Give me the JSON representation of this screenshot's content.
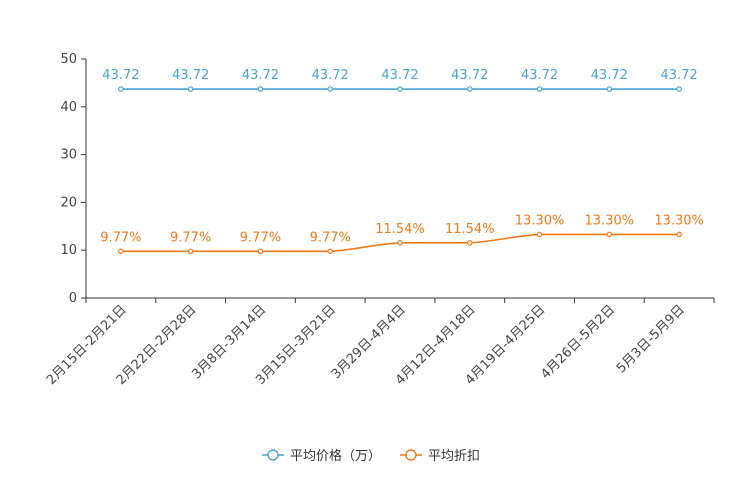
{
  "chart_data": {
    "type": "line",
    "title": "",
    "xlabel": "",
    "ylabel": "",
    "ylim": [
      0,
      50
    ],
    "yticks": [
      0,
      10,
      20,
      30,
      40,
      50
    ],
    "ytick_labels": [
      "0",
      "10",
      "20",
      "30",
      "40",
      "50"
    ],
    "grid": false,
    "legend_position": "bottom",
    "categories": [
      "2月15日-2月21日",
      "2月22日-2月28日",
      "3月8日-3月14日",
      "3月15日-3月21日",
      "3月29日-4月4日",
      "4月12日-4月18日",
      "4月19日-4月25日",
      "4月26日-5月2日",
      "5月3日-5月9日"
    ],
    "series": [
      {
        "name": "平均价格（万）",
        "color": "#4aa3d4",
        "values": [
          43.72,
          43.72,
          43.72,
          43.72,
          43.72,
          43.72,
          43.72,
          43.72,
          43.72
        ],
        "labels": [
          "43.72",
          "43.72",
          "43.72",
          "43.72",
          "43.72",
          "43.72",
          "43.72",
          "43.72",
          "43.72"
        ]
      },
      {
        "name": "平均折扣",
        "color": "#f07a1a",
        "values": [
          9.77,
          9.77,
          9.77,
          9.77,
          11.54,
          11.54,
          13.3,
          13.3,
          13.3
        ],
        "labels": [
          "9.77%",
          "9.77%",
          "9.77%",
          "9.77%",
          "11.54%",
          "11.54%",
          "13.30%",
          "13.30%",
          "13.30%"
        ]
      }
    ]
  }
}
